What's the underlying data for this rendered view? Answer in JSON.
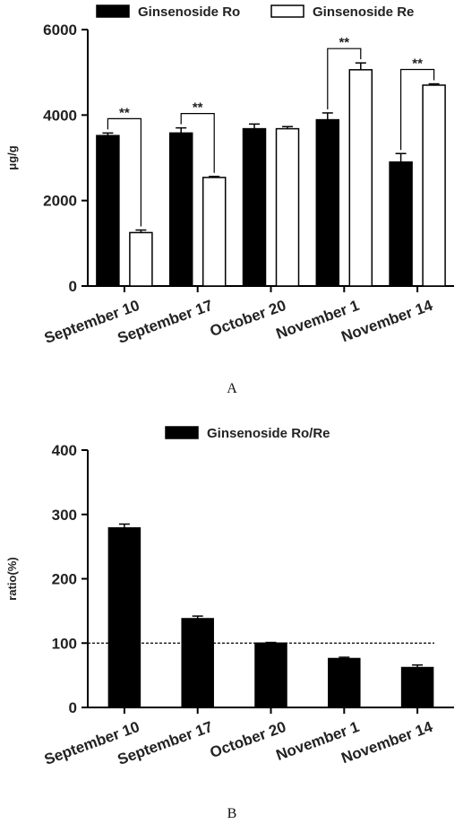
{
  "chart_data": [
    {
      "type": "bar",
      "categories": [
        "September 10",
        "September 17",
        "October 20",
        "November 1",
        "November 14"
      ],
      "series": [
        {
          "name": "Ginsenoside Ro",
          "values": [
            3520,
            3580,
            3680,
            3890,
            2900
          ],
          "errors": [
            60,
            120,
            110,
            160,
            200
          ],
          "fill": "#000000"
        },
        {
          "name": "Ginsenoside Re",
          "values": [
            1250,
            2540,
            3680,
            5060,
            4700
          ],
          "errors": [
            60,
            25,
            50,
            160,
            30
          ],
          "fill": "#ffffff"
        }
      ],
      "ylabel": "μg/g",
      "ylim": [
        0,
        6000
      ],
      "yticks": [
        "0",
        "2000",
        "4000",
        "6000"
      ],
      "significance": [
        {
          "category": "September 10",
          "label": "**"
        },
        {
          "category": "September 17",
          "label": "**"
        },
        {
          "category": "November 1",
          "label": "**"
        },
        {
          "category": "November 14",
          "label": "**"
        }
      ],
      "legend_position": "top-center",
      "panel_label": "A"
    },
    {
      "type": "bar",
      "categories": [
        "September 10",
        "September 17",
        "October 20",
        "November 1",
        "November 14"
      ],
      "series": [
        {
          "name": "Ginsenoside Ro/Re",
          "values": [
            279,
            138,
            100,
            76,
            62
          ],
          "errors": [
            6,
            4,
            1,
            2,
            4
          ],
          "fill": "#000000"
        }
      ],
      "ylabel": "ratio(%)",
      "ylim": [
        0,
        400
      ],
      "yticks": [
        "0",
        "100",
        "200",
        "300",
        "400"
      ],
      "reference_line": 100,
      "legend_position": "top-center",
      "panel_label": "B"
    }
  ]
}
